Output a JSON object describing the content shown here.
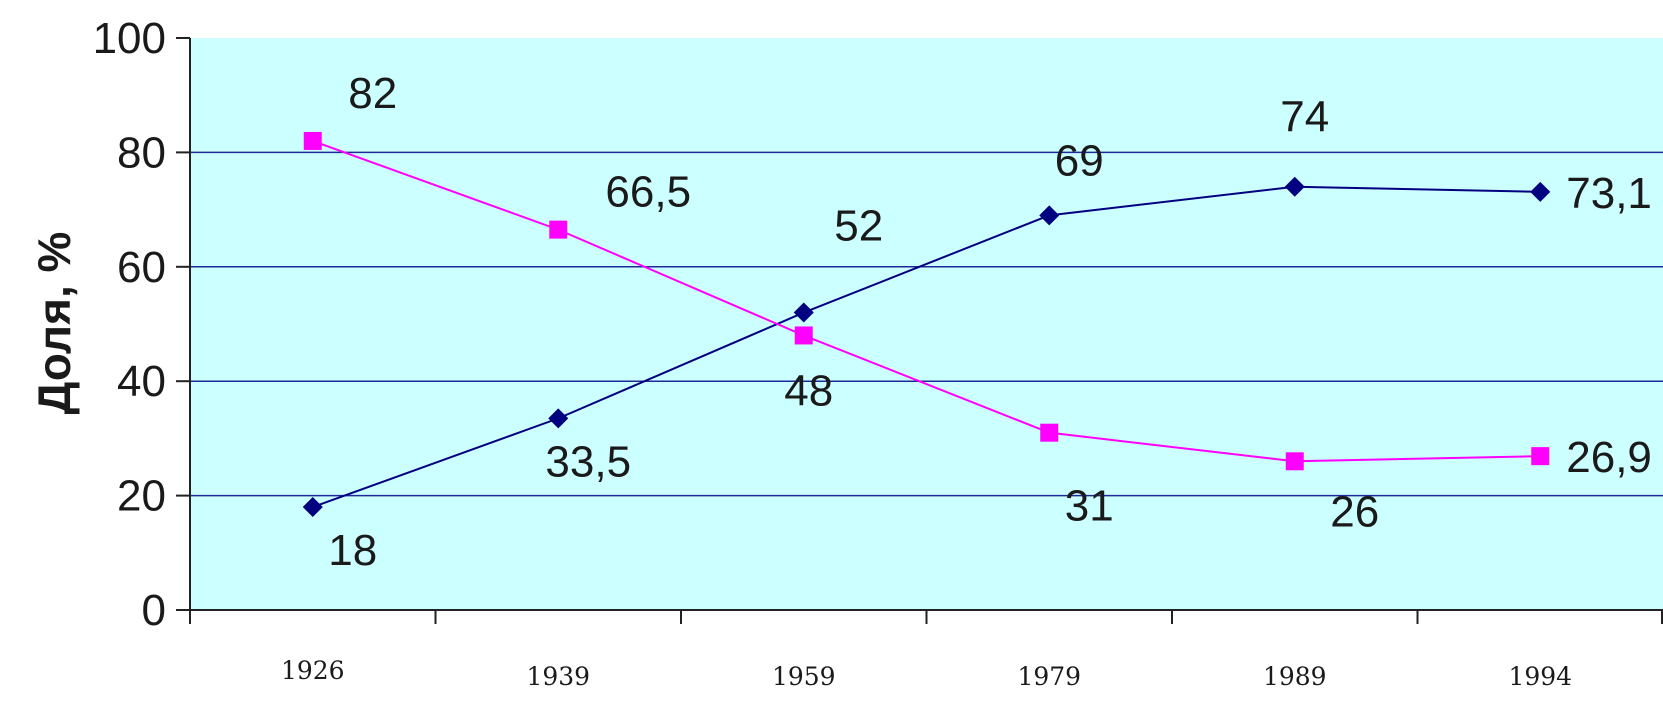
{
  "chart_data": {
    "type": "line",
    "title": "",
    "xlabel": "",
    "ylabel": "Доля, %",
    "categories": [
      "1926",
      "1939",
      "1959",
      "1979",
      "1989",
      "1994"
    ],
    "ylim": [
      0,
      100
    ],
    "yticks": [
      "0",
      "20",
      "40",
      "60",
      "80",
      "100"
    ],
    "grid": true,
    "legend": "none",
    "plot_background": "#ccffff",
    "series": [
      {
        "color": "#000080",
        "marker": "diamond",
        "values": [
          18,
          33.5,
          52,
          69,
          74,
          73.1
        ],
        "labels": [
          "18",
          "33,5",
          "52",
          "69",
          "74",
          "73,1"
        ]
      },
      {
        "color": "#ff00ff",
        "marker": "square",
        "values": [
          82,
          66.5,
          48,
          31,
          26,
          26.9
        ],
        "labels": [
          "82",
          "66,5",
          "48",
          "31",
          "26",
          "26,9"
        ]
      }
    ]
  }
}
